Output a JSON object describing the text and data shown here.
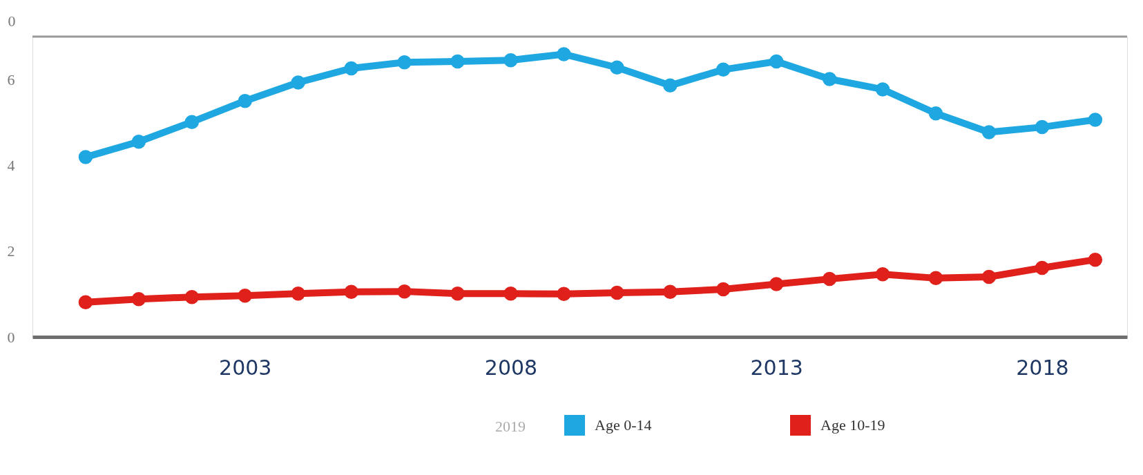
{
  "chart_data": {
    "type": "line",
    "x": [
      2000,
      2001,
      2002,
      2003,
      2004,
      2005,
      2006,
      2007,
      2008,
      2009,
      2010,
      2011,
      2012,
      2013,
      2014,
      2015,
      2016,
      2017,
      2018,
      2019
    ],
    "series": [
      {
        "name": "Age 0-14",
        "color": "#1ea7e1",
        "values": [
          4.19,
          4.55,
          5.01,
          5.5,
          5.93,
          6.26,
          6.4,
          6.42,
          6.45,
          6.59,
          6.28,
          5.86,
          6.23,
          6.42,
          6.01,
          5.77,
          5.21,
          4.77,
          4.89,
          5.06
        ]
      },
      {
        "name": "Age 10-19",
        "color": "#e0201a",
        "values": [
          0.81,
          0.88,
          0.93,
          0.96,
          1.01,
          1.05,
          1.06,
          1.01,
          1.01,
          1.0,
          1.03,
          1.05,
          1.11,
          1.23,
          1.35,
          1.46,
          1.37,
          1.4,
          1.61,
          1.8
        ]
      }
    ],
    "xlim": [
      1999,
      2019.6
    ],
    "xticks": [
      2003,
      2008,
      2013,
      2018
    ],
    "ylim": [
      0,
      7
    ],
    "yticks": [
      0,
      2,
      4,
      6
    ],
    "ref_lines": [
      {
        "axis": "y",
        "value": 7,
        "color": "#9a9a9a"
      }
    ],
    "grid": false,
    "legend": "bottom",
    "marker": "circle",
    "line_style": "solid",
    "annotations": [
      "0",
      "2019"
    ]
  }
}
